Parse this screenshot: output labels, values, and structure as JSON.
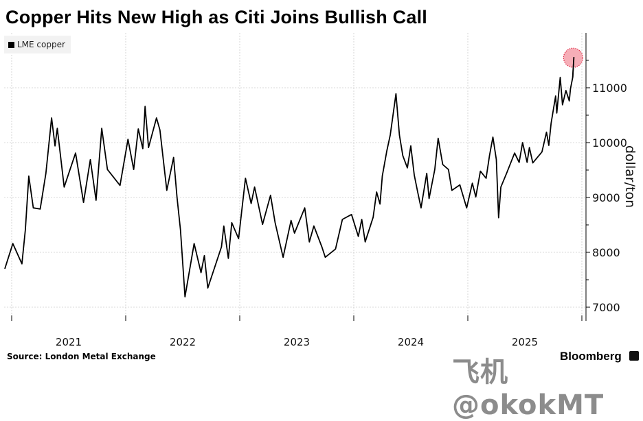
{
  "chart_data": {
    "type": "line",
    "title": "Copper Hits New High as Citi Joins Bullish Call",
    "ylabel": "dollar/ton",
    "xlabel": "",
    "ylim": [
      6750,
      12000
    ],
    "xlim": [
      2020.9,
      2026.0
    ],
    "y_ticks": [
      7000,
      8000,
      9000,
      10000,
      11000
    ],
    "y_minor_ticks": [
      7500,
      8500,
      9500,
      10500,
      11500
    ],
    "x_ticks": [
      "2021",
      "2022",
      "2023",
      "2024",
      "2025"
    ],
    "grid": true,
    "legend_placement": "top-left",
    "highlight": "last point (new high)",
    "colors": {
      "line": "#000000",
      "highlight_fill": "#f4a0aa",
      "highlight_stroke": "#e0304a",
      "grid": "#cccccc"
    },
    "series": [
      {
        "name": "LME copper",
        "x": [
          2020.94,
          2021.01,
          2021.09,
          2021.12,
          2021.15,
          2021.19,
          2021.25,
          2021.3,
          2021.35,
          2021.38,
          2021.4,
          2021.46,
          2021.56,
          2021.63,
          2021.69,
          2021.74,
          2021.79,
          2021.84,
          2021.95,
          2022.02,
          2022.07,
          2022.11,
          2022.15,
          2022.17,
          2022.2,
          2022.27,
          2022.3,
          2022.36,
          2022.42,
          2022.45,
          2022.48,
          2022.52,
          2022.6,
          2022.66,
          2022.69,
          2022.72,
          2022.84,
          2022.86,
          2022.9,
          2022.93,
          2022.99,
          2023.05,
          2023.1,
          2023.13,
          2023.2,
          2023.27,
          2023.31,
          2023.38,
          2023.45,
          2023.48,
          2023.57,
          2023.61,
          2023.65,
          2023.72,
          2023.75,
          2023.84,
          2023.9,
          2023.98,
          2024.04,
          2024.07,
          2024.1,
          2024.17,
          2024.2,
          2024.23,
          2024.25,
          2024.29,
          2024.32,
          2024.37,
          2024.4,
          2024.43,
          2024.47,
          2024.5,
          2024.53,
          2024.56,
          2024.59,
          2024.64,
          2024.66,
          2024.71,
          2024.74,
          2024.78,
          2024.83,
          2024.86,
          2024.93,
          2024.99,
          2025.04,
          2025.07,
          2025.11,
          2025.16,
          2025.19,
          2025.22,
          2025.25,
          2025.27,
          2025.29,
          2025.34,
          2025.41,
          2025.45,
          2025.48,
          2025.52,
          2025.54,
          2025.57,
          2025.65,
          2025.69,
          2025.71,
          2025.73,
          2025.77,
          2025.78,
          2025.81,
          2025.83,
          2025.86,
          2025.89,
          2025.9,
          2025.92,
          2025.93
        ],
        "values": [
          7700,
          8160,
          7790,
          8410,
          9390,
          8810,
          8790,
          9440,
          10450,
          9940,
          10260,
          9190,
          9810,
          8910,
          9690,
          8950,
          10260,
          9510,
          9220,
          10060,
          9510,
          10250,
          9890,
          10660,
          9910,
          10450,
          10230,
          9130,
          9730,
          9000,
          8410,
          7190,
          8160,
          7630,
          7940,
          7350,
          8100,
          8480,
          7890,
          8540,
          8250,
          9350,
          8890,
          9190,
          8510,
          9040,
          8540,
          7910,
          8580,
          8350,
          8810,
          8190,
          8480,
          8100,
          7910,
          8060,
          8600,
          8690,
          8290,
          8600,
          8190,
          8640,
          9100,
          8880,
          9390,
          9850,
          10140,
          10890,
          10140,
          9760,
          9540,
          9940,
          9410,
          9100,
          8810,
          9440,
          8980,
          9510,
          10080,
          9600,
          9510,
          9130,
          9230,
          8810,
          9260,
          9010,
          9480,
          9350,
          9760,
          10100,
          9690,
          8630,
          9190,
          9440,
          9810,
          9640,
          10000,
          9640,
          9910,
          9630,
          9830,
          10190,
          9950,
          10350,
          10850,
          10540,
          11190,
          10690,
          10950,
          10760,
          10980,
          11190,
          11560
        ]
      }
    ]
  },
  "legend": {
    "label": "LME copper"
  },
  "footer": {
    "source": "Source: London Metal Exchange",
    "brand": "Bloomberg",
    "watermark": "飞机@okokMT"
  }
}
